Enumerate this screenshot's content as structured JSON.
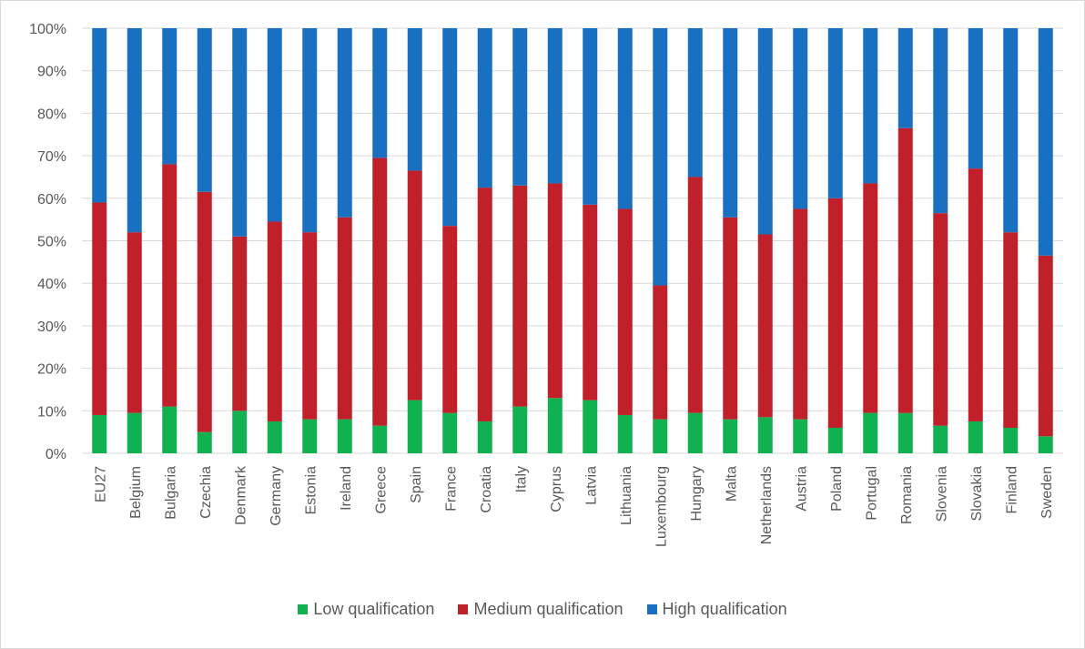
{
  "chart_data": {
    "type": "bar",
    "stacked": true,
    "percent_scale": true,
    "categories": [
      "EU27",
      "Belgium",
      "Bulgaria",
      "Czechia",
      "Denmark",
      "Germany",
      "Estonia",
      "Ireland",
      "Greece",
      "Spain",
      "France",
      "Croatia",
      "Italy",
      "Cyprus",
      "Latvia",
      "Lithuania",
      "Luxembourg",
      "Hungary",
      "Malta",
      "Netherlands",
      "Austria",
      "Poland",
      "Portugal",
      "Romania",
      "Slovenia",
      "Slovakia",
      "Finland",
      "Sweden"
    ],
    "series": [
      {
        "name": "Low qualification",
        "color": "#11b050",
        "values": [
          9,
          9.5,
          11,
          5,
          10,
          7.5,
          8,
          8,
          6.5,
          12.5,
          9.5,
          7.5,
          11,
          13,
          12.5,
          9,
          8,
          9.5,
          8,
          8.5,
          8,
          6,
          9.5,
          9.5,
          6.5,
          7.5,
          6,
          4
        ]
      },
      {
        "name": "Medium qualification",
        "color": "#c0202a",
        "values": [
          50,
          42.5,
          57,
          56.5,
          41,
          47,
          44,
          47.5,
          63,
          54,
          44,
          55,
          52,
          50.5,
          46,
          48.5,
          31.5,
          55.5,
          47.5,
          43,
          49.5,
          54,
          54,
          67,
          50,
          59.5,
          46,
          42.5
        ]
      },
      {
        "name": "High qualification",
        "color": "#1a70c0",
        "values": [
          41,
          48,
          32,
          38.5,
          49,
          45.5,
          48,
          44.5,
          30.5,
          33.5,
          46.5,
          37.5,
          37,
          36.5,
          41.5,
          42.5,
          60.5,
          35,
          44.5,
          48.5,
          42.5,
          40,
          36.5,
          23.5,
          43.5,
          33,
          48,
          53.5
        ]
      }
    ],
    "y_ticks": [
      "0%",
      "10%",
      "20%",
      "30%",
      "40%",
      "50%",
      "60%",
      "70%",
      "80%",
      "90%",
      "100%"
    ],
    "ylim": [
      0,
      100
    ],
    "grid": true,
    "legend_position": "bottom"
  }
}
